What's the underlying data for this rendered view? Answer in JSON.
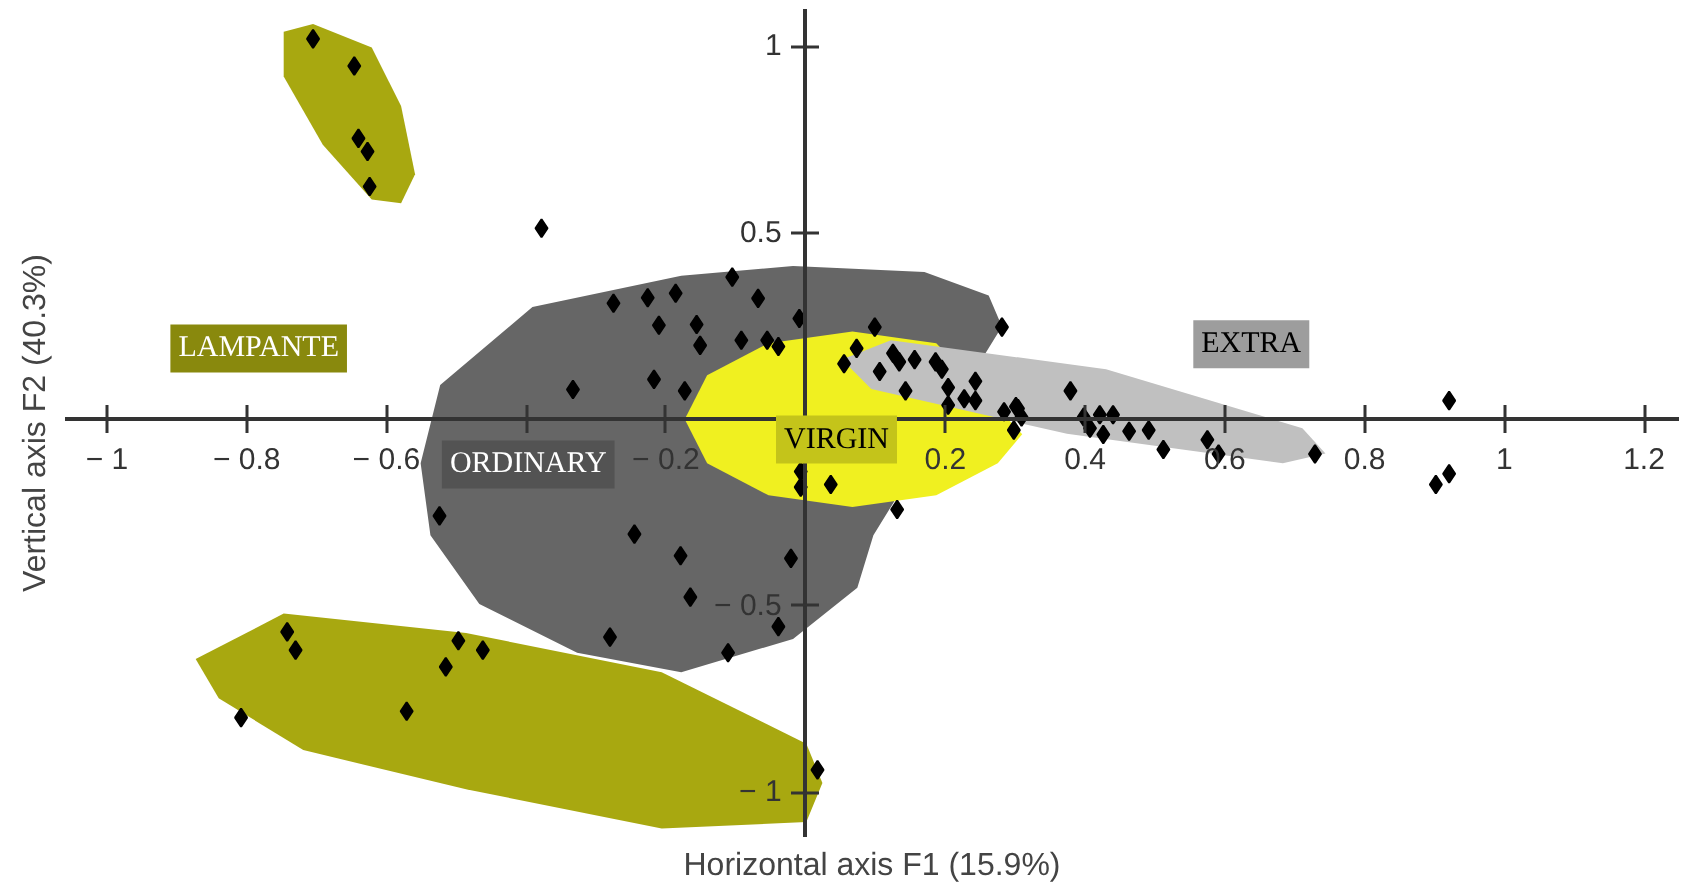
{
  "chart_data": {
    "type": "scatter",
    "xlabel": "Horizontal axis F1 (15.9%)",
    "ylabel": "Vertical axis F2 (40.3%)",
    "xlim": [
      -1.06,
      1.25
    ],
    "ylim": [
      -1.12,
      1.1
    ],
    "xticks": [
      {
        "value": -1,
        "label": "− 1"
      },
      {
        "value": -0.8,
        "label": "− 0.8"
      },
      {
        "value": -0.6,
        "label": "− 0.6"
      },
      {
        "value": -0.4,
        "label": null
      },
      {
        "value": -0.2,
        "label": "− 0.2"
      },
      {
        "value": 0,
        "label": null
      },
      0.2,
      0.4,
      0.6,
      0.8,
      1,
      1.2
    ],
    "yticks": [
      {
        "value": -1,
        "label": "− 1"
      },
      {
        "value": -0.5,
        "label": "− 0.5"
      },
      {
        "value": 0,
        "label": null
      },
      0.5,
      1
    ],
    "grid": false,
    "series": [
      {
        "type": "area",
        "color": "#a8a810",
        "x": [
          -0.705,
          -0.621,
          -0.579,
          -0.559,
          -0.579,
          -0.621,
          -0.691,
          -0.747,
          -0.747,
          null,
          -0.873,
          -0.747,
          -0.486,
          -0.206,
          0.001,
          0.024,
          0.001,
          -0.206,
          -0.486,
          -0.719,
          -0.84
        ],
        "values": [
          1.06,
          0.997,
          0.84,
          0.657,
          0.579,
          0.589,
          0.736,
          0.919,
          1.039,
          null,
          -0.643,
          -0.521,
          -0.573,
          -0.678,
          -0.87,
          -0.975,
          -1.08,
          -1.097,
          -0.992,
          -0.887,
          -0.748
        ]
      },
      {
        "type": "area",
        "color": "#666666",
        "x": [
          -0.551,
          -0.523,
          -0.391,
          -0.178,
          -0.018,
          0.17,
          0.262,
          0.281,
          0.097,
          0.074,
          -0.018,
          -0.178,
          -0.327,
          -0.467,
          -0.537
        ],
        "values": [
          -0.118,
          0.092,
          0.301,
          0.385,
          0.411,
          0.395,
          0.332,
          0.249,
          -0.311,
          -0.452,
          -0.589,
          -0.678,
          -0.626,
          -0.495,
          -0.311
        ]
      },
      {
        "type": "area",
        "color": "#f0f020",
        "x": [
          0.31,
          0.187,
          0.067,
          -0.053,
          -0.141,
          -0.173,
          -0.141,
          -0.053,
          0.067,
          0.187,
          0.275
        ],
        "values": [
          -0.04,
          0.204,
          0.235,
          0.204,
          0.118,
          0,
          -0.118,
          -0.204,
          -0.235,
          -0.204,
          -0.118
        ]
      },
      {
        "type": "area",
        "color": "#c0c0c0",
        "x": [
          0.122,
          0.43,
          0.711,
          0.744,
          0.683,
          0.374,
          0.094,
          0.052
        ],
        "values": [
          0.212,
          0.134,
          -0.024,
          -0.092,
          -0.118,
          -0.039,
          0.081,
          0.16
        ]
      },
      {
        "marker": "diamond",
        "color": "#000000",
        "x": [
          -0.705,
          -0.646,
          -0.64,
          -0.627,
          -0.624,
          -0.378,
          -0.275,
          -0.226,
          -0.186,
          -0.105,
          -0.068,
          -0.21,
          -0.156,
          -0.151,
          -0.092,
          -0.055,
          -0.039,
          -0.009,
          -0.333,
          -0.217,
          -0.173,
          0.099,
          0.281,
          0.073,
          0.055,
          0.125,
          0.134,
          0.156,
          0.186,
          0.195,
          0.106,
          0.143,
          0.204,
          0.243,
          0.227,
          0.243,
          0.204,
          0.301,
          0.298,
          0.284,
          0.304,
          0.309,
          -0.007,
          -0.007,
          0.036,
          0.131,
          -0.524,
          -0.245,
          -0.179,
          -0.021,
          -0.165,
          -0.039,
          -0.28,
          -0.111,
          0.379,
          0.398,
          0.407,
          0.421,
          0.44,
          0.426,
          0.463,
          0.491,
          0.512,
          0.575,
          0.591,
          0.729,
          0.921,
          0.902,
          0.921,
          -0.742,
          -0.73,
          -0.497,
          -0.462,
          -0.515,
          -0.571,
          -0.808,
          0.017
        ],
        "values": [
          1.02,
          0.947,
          0.753,
          0.718,
          0.624,
          0.512,
          0.311,
          0.326,
          0.338,
          0.381,
          0.324,
          0.252,
          0.254,
          0.198,
          0.212,
          0.212,
          0.195,
          0.27,
          0.08,
          0.107,
          0.076,
          0.247,
          0.247,
          0.19,
          0.149,
          0.177,
          0.154,
          0.16,
          0.154,
          0.134,
          0.128,
          0.076,
          0.085,
          0.102,
          0.055,
          0.05,
          0.038,
          0.034,
          -0.029,
          0.02,
          0.029,
          0.006,
          -0.14,
          -0.182,
          -0.175,
          -0.242,
          -0.259,
          -0.308,
          -0.366,
          -0.373,
          -0.477,
          -0.556,
          -0.584,
          -0.626,
          0.076,
          0.006,
          -0.024,
          0.012,
          0.012,
          -0.041,
          -0.032,
          -0.029,
          -0.081,
          -0.055,
          -0.093,
          -0.093,
          0.05,
          -0.175,
          -0.146,
          -0.57,
          -0.619,
          -0.594,
          -0.619,
          -0.664,
          -0.783,
          -0.8,
          -0.94
        ]
      }
    ],
    "annotations": [
      "LAMPANTE",
      "ORDINARY",
      "VIRGIN",
      "EXTRA"
    ]
  }
}
